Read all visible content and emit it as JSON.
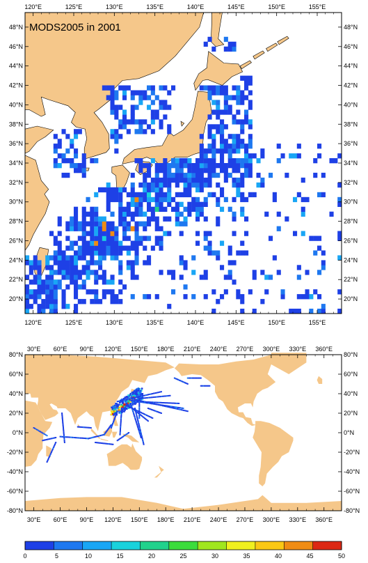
{
  "figure_title": "MODS2005 in 2001",
  "colors": {
    "land": "#f5c78a",
    "ocean": "#ffffff",
    "frame": "#000000"
  },
  "top_map": {
    "name": "Northwest Pacific detail",
    "lon_range": [
      119,
      158
    ],
    "lat_range": [
      18.5,
      49.5
    ],
    "lon_ticks": [
      "120°E",
      "125°E",
      "130°E",
      "135°E",
      "140°E",
      "145°E",
      "150°E",
      "155°E"
    ],
    "lat_ticks": [
      "20°N",
      "22°N",
      "24°N",
      "26°N",
      "28°N",
      "30°N",
      "32°N",
      "34°N",
      "36°N",
      "38°N",
      "40°N",
      "42°N",
      "44°N",
      "46°N",
      "48°N"
    ]
  },
  "bottom_map": {
    "name": "Global view",
    "lon_range": [
      20,
      380
    ],
    "lat_range": [
      -80,
      80
    ],
    "lon_ticks": [
      "30°E",
      "60°E",
      "90°E",
      "120°E",
      "150°E",
      "180°E",
      "210°E",
      "240°E",
      "270°E",
      "300°E",
      "330°E",
      "360°E"
    ],
    "lat_ticks": [
      "80°N",
      "60°N",
      "40°N",
      "20°N",
      "0°N",
      "-20°N",
      "-40°N",
      "-60°N",
      "-80°N"
    ]
  },
  "colorbar": {
    "labels": [
      "0",
      "5",
      "10",
      "15",
      "20",
      "25",
      "30",
      "35",
      "40",
      "45",
      "50"
    ],
    "colors": [
      "#1e40e6",
      "#1e78f0",
      "#19a6f5",
      "#19d2dc",
      "#21d28c",
      "#3cdc3c",
      "#a0e61e",
      "#f0f01e",
      "#fac814",
      "#f08c14",
      "#dc2814"
    ]
  }
}
